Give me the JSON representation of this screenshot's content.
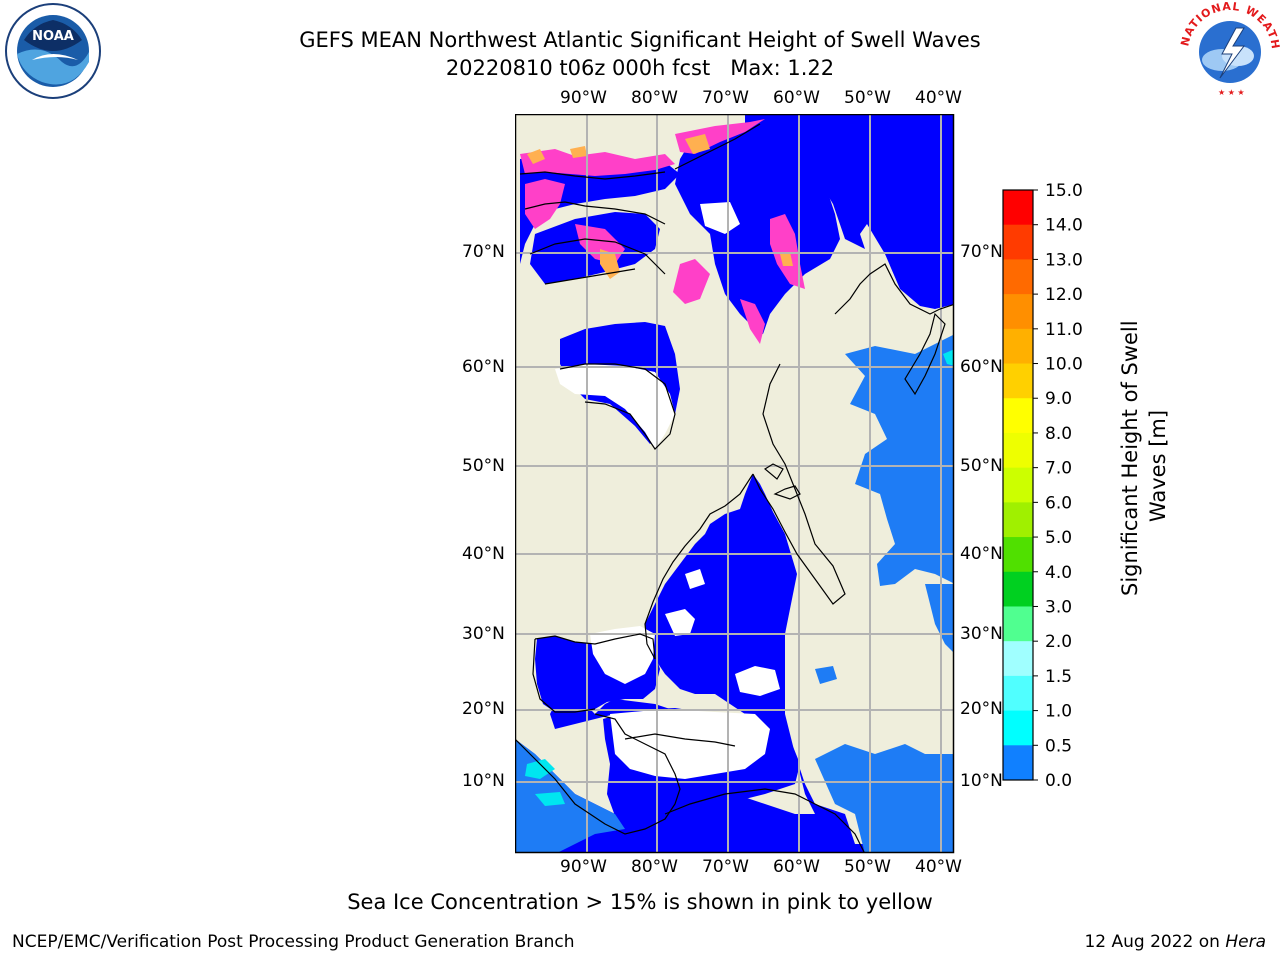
{
  "header": {
    "title_line1": "GEFS MEAN Northwest Atlantic Significant Height of Swell Waves",
    "title_line2": "20220810 t06z 000h fcst   Max: 1.22"
  },
  "logos": {
    "left": {
      "name": "noaa-logo",
      "text": "NOAA"
    },
    "right": {
      "name": "national-weather-service-logo",
      "text": "NATIONAL WEATHER SERVICE"
    }
  },
  "map": {
    "top_lon_labels": [
      "90°W",
      "80°W",
      "70°W",
      "60°W",
      "50°W",
      "40°W"
    ],
    "bottom_lon_labels": [
      "90°W",
      "80°W",
      "70°W",
      "60°W",
      "50°W",
      "40°W"
    ],
    "left_lat_labels": [
      "70°N",
      "60°N",
      "50°N",
      "40°N",
      "30°N",
      "20°N",
      "10°N"
    ],
    "right_lat_labels": [
      "70°N",
      "60°N",
      "50°N",
      "40°N",
      "30°N",
      "20°N",
      "10°N"
    ],
    "colors": {
      "land": "#efeedc",
      "sea_0_05": "#0000ff",
      "sea_05_10": "#1e7cf5",
      "sea_10_15": "#00e6f0",
      "ice": "#ff40c8",
      "ice_high": "#ffb050",
      "grid": "#b3b3b3"
    }
  },
  "colorbar": {
    "title": "Significant Height of Swell Waves [m]",
    "title_line1": "Significant Height of Swell",
    "title_line2": "Waves [m]",
    "ticks": [
      "15.0",
      "14.0",
      "13.0",
      "12.0",
      "11.0",
      "10.0",
      "9.0",
      "8.0",
      "7.0",
      "6.0",
      "5.0",
      "4.0",
      "3.0",
      "2.0",
      "1.5",
      "1.0",
      "0.5",
      "0.0"
    ],
    "colors": [
      "#ff0000",
      "#ff3b00",
      "#ff6a00",
      "#ff8f00",
      "#ffb000",
      "#ffd000",
      "#ffff00",
      "#eeff00",
      "#ccff00",
      "#a0f000",
      "#50e000",
      "#00d020",
      "#50ff90",
      "#a0ffff",
      "#50ffff",
      "#00ffff",
      "#1080ff",
      "#0000ff"
    ]
  },
  "caption": "Sea Ice Concentration > 15% is shown in pink to yellow",
  "footer": {
    "left": "NCEP/EMC/Verification Post Processing Product Generation Branch",
    "right_prefix": "12 Aug 2022 on ",
    "right_host": "Hera"
  }
}
